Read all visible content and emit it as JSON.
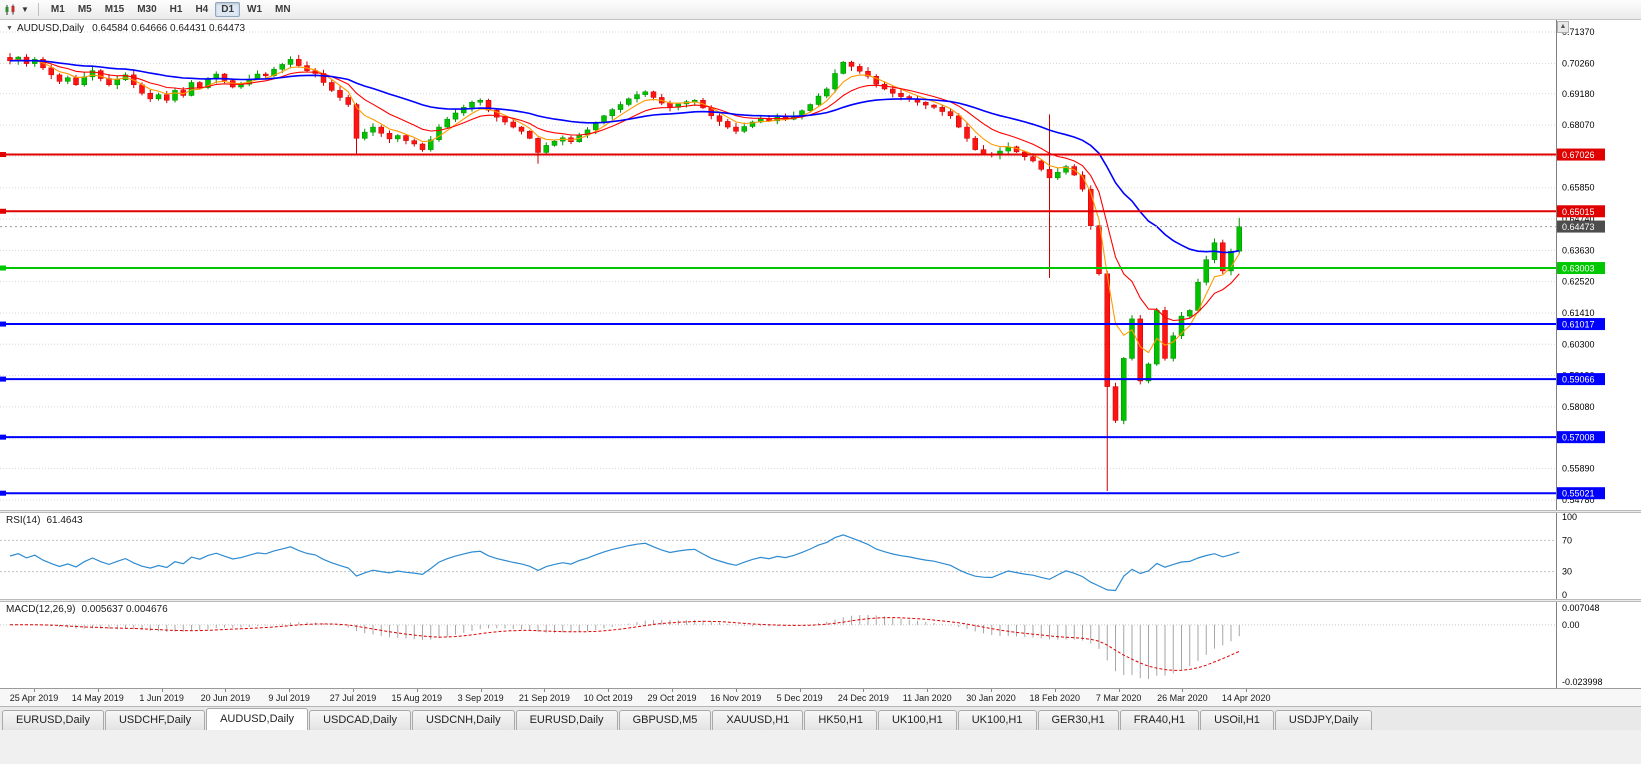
{
  "toolbar": {
    "timeframes": [
      "M1",
      "M5",
      "M15",
      "M30",
      "H1",
      "H4",
      "D1",
      "W1",
      "MN"
    ],
    "active_timeframe": "D1"
  },
  "chart": {
    "title_symbol": "AUDUSD,Daily",
    "ohlc": "0.64584 0.64666 0.64431 0.64473",
    "open": "0.64584",
    "high": "0.64666",
    "low": "0.64431",
    "close": "0.64473",
    "current_price": 0.64473,
    "current_price_label": "0.64473",
    "current_price_tag_color": "#4d4d4d",
    "colors": {
      "up_fill": "#00c000",
      "up_stroke": "#008f00",
      "down_fill": "#ff1414",
      "down_stroke": "#cc0000",
      "ma_blue": "#0000ff",
      "ma_red": "#ff0000",
      "ma_orange": "#ff9900",
      "grid": "#d7d7d7",
      "axis_line": "#808080",
      "rsi_line": "#2e8bd0",
      "macd_hist": "#a6a6a6",
      "macd_signal": "#e00000"
    }
  },
  "chart_data": {
    "type": "candlestick",
    "symbol": "AUDUSD",
    "timeframe": "Daily",
    "price_axis": {
      "top": 0.7137,
      "bottom": 0.5478
    },
    "y_axis_labels": [
      "0.71370",
      "0.70260",
      "0.69180",
      "0.68070",
      "0.66960",
      "0.65850",
      "0.64740",
      "0.63630",
      "0.62520",
      "0.61410",
      "0.60300",
      "0.59190",
      "0.58080",
      "0.56970",
      "0.55890",
      "0.54780"
    ],
    "x_axis_labels": [
      "25 Apr 2019",
      "14 May 2019",
      "1 Jun 2019",
      "20 Jun 2019",
      "9 Jul 2019",
      "27 Jul 2019",
      "15 Aug 2019",
      "3 Sep 2019",
      "21 Sep 2019",
      "10 Oct 2019",
      "29 Oct 2019",
      "16 Nov 2019",
      "5 Dec 2019",
      "24 Dec 2019",
      "11 Jan 2020",
      "30 Jan 2020",
      "18 Feb 2020",
      "7 Mar 2020",
      "26 Mar 2020",
      "14 Apr 2020"
    ],
    "closes": [
      0.7035,
      0.7048,
      0.7025,
      0.704,
      0.701,
      0.6985,
      0.6962,
      0.6975,
      0.695,
      0.6978,
      0.7,
      0.6972,
      0.695,
      0.6968,
      0.6985,
      0.695,
      0.692,
      0.69,
      0.6915,
      0.6895,
      0.693,
      0.6912,
      0.6958,
      0.694,
      0.697,
      0.6988,
      0.6965,
      0.6942,
      0.6952,
      0.697,
      0.6988,
      0.6982,
      0.7005,
      0.7022,
      0.704,
      0.7018,
      0.7,
      0.699,
      0.6958,
      0.693,
      0.6905,
      0.688,
      0.676,
      0.6782,
      0.68,
      0.6778,
      0.6758,
      0.677,
      0.6752,
      0.674,
      0.672,
      0.6755,
      0.68,
      0.6828,
      0.685,
      0.687,
      0.6888,
      0.6895,
      0.686,
      0.6835,
      0.6818,
      0.68,
      0.6785,
      0.676,
      0.671,
      0.6735,
      0.675,
      0.6762,
      0.6748,
      0.6772,
      0.679,
      0.6815,
      0.684,
      0.6862,
      0.688,
      0.69,
      0.6915,
      0.6925,
      0.6905,
      0.6885,
      0.687,
      0.6882,
      0.689,
      0.6895,
      0.6868,
      0.684,
      0.682,
      0.68,
      0.6785,
      0.6802,
      0.6818,
      0.683,
      0.6822,
      0.6835,
      0.6828,
      0.684,
      0.6858,
      0.688,
      0.691,
      0.6935,
      0.699,
      0.703,
      0.7015,
      0.6998,
      0.698,
      0.6952,
      0.6935,
      0.692,
      0.6908,
      0.69,
      0.6888,
      0.6878,
      0.687,
      0.6855,
      0.684,
      0.68,
      0.676,
      0.672,
      0.6705,
      0.67,
      0.6715,
      0.673,
      0.6712,
      0.6695,
      0.668,
      0.665,
      0.662,
      0.664,
      0.666,
      0.663,
      0.658,
      0.645,
      0.628,
      0.588,
      0.576,
      0.598,
      0.612,
      0.59,
      0.596,
      0.615,
      0.598,
      0.606,
      0.613,
      0.615,
      0.625,
      0.633,
      0.639,
      0.629,
      0.636,
      0.6447
    ],
    "overrides": [
      {
        "index": 42,
        "low": 0.67
      },
      {
        "index": 64,
        "low": 0.667
      },
      {
        "index": 126,
        "high": 0.6845,
        "low": 0.6265
      },
      {
        "index": 133,
        "low": 0.551
      },
      {
        "index": 149,
        "high": 0.6478
      }
    ],
    "moving_averages": [
      {
        "name": "fast",
        "period": 5,
        "color": "#ff9900"
      },
      {
        "name": "medium",
        "period": 11,
        "color": "#ff0000"
      },
      {
        "name": "slow",
        "period": 32,
        "color": "#0000ff"
      }
    ],
    "hlines": [
      {
        "label": "0.67026",
        "price": 0.67026,
        "color": "#e00000"
      },
      {
        "label": "0.65015",
        "price": 0.65015,
        "color": "#e00000"
      },
      {
        "label": "0.63003",
        "price": 0.63003,
        "color": "#00c800"
      },
      {
        "label": "0.61017",
        "price": 0.61017,
        "color": "#0000ff"
      },
      {
        "label": "0.59066",
        "price": 0.59066,
        "color": "#0000ff"
      },
      {
        "label": "0.57008",
        "price": 0.57008,
        "color": "#0000ff"
      },
      {
        "label": "0.55021",
        "price": 0.55021,
        "color": "#0000ff"
      }
    ]
  },
  "rsi": {
    "label": "RSI(14)",
    "value": "61.4643",
    "period": 14,
    "levels": [
      {
        "label": "100",
        "v": 100
      },
      {
        "label": "70",
        "v": 70
      },
      {
        "label": "30",
        "v": 30
      },
      {
        "label": "0",
        "v": 0
      }
    ],
    "dashed_levels": [
      70,
      30
    ]
  },
  "macd": {
    "label": "MACD(12,26,9)",
    "values": "0.005637 0.004676",
    "fast": 12,
    "slow": 26,
    "signal": 9,
    "axis": [
      {
        "label": "0.007048",
        "v": 0.007048
      },
      {
        "label": "0.00",
        "v": 0
      },
      {
        "label": "-0.023998",
        "v": -0.023998
      }
    ],
    "scale_top": 0.0075,
    "scale_bottom": -0.0245
  },
  "tabs": [
    {
      "label": "EURUSD,Daily",
      "active": false
    },
    {
      "label": "USDCHF,Daily",
      "active": false
    },
    {
      "label": "AUDUSD,Daily",
      "active": true
    },
    {
      "label": "USDCAD,Daily",
      "active": false
    },
    {
      "label": "USDCNH,Daily",
      "active": false
    },
    {
      "label": "EURUSD,Daily",
      "active": false
    },
    {
      "label": "GBPUSD,M5",
      "active": false
    },
    {
      "label": "XAUUSD,H1",
      "active": false
    },
    {
      "label": "HK50,H1",
      "active": false
    },
    {
      "label": "UK100,H1",
      "active": false
    },
    {
      "label": "UK100,H1",
      "active": false
    },
    {
      "label": "GER30,H1",
      "active": false
    },
    {
      "label": "FRA40,H1",
      "active": false
    },
    {
      "label": "USOil,H1",
      "active": false
    },
    {
      "label": "USDJPY,Daily",
      "active": false
    }
  ]
}
